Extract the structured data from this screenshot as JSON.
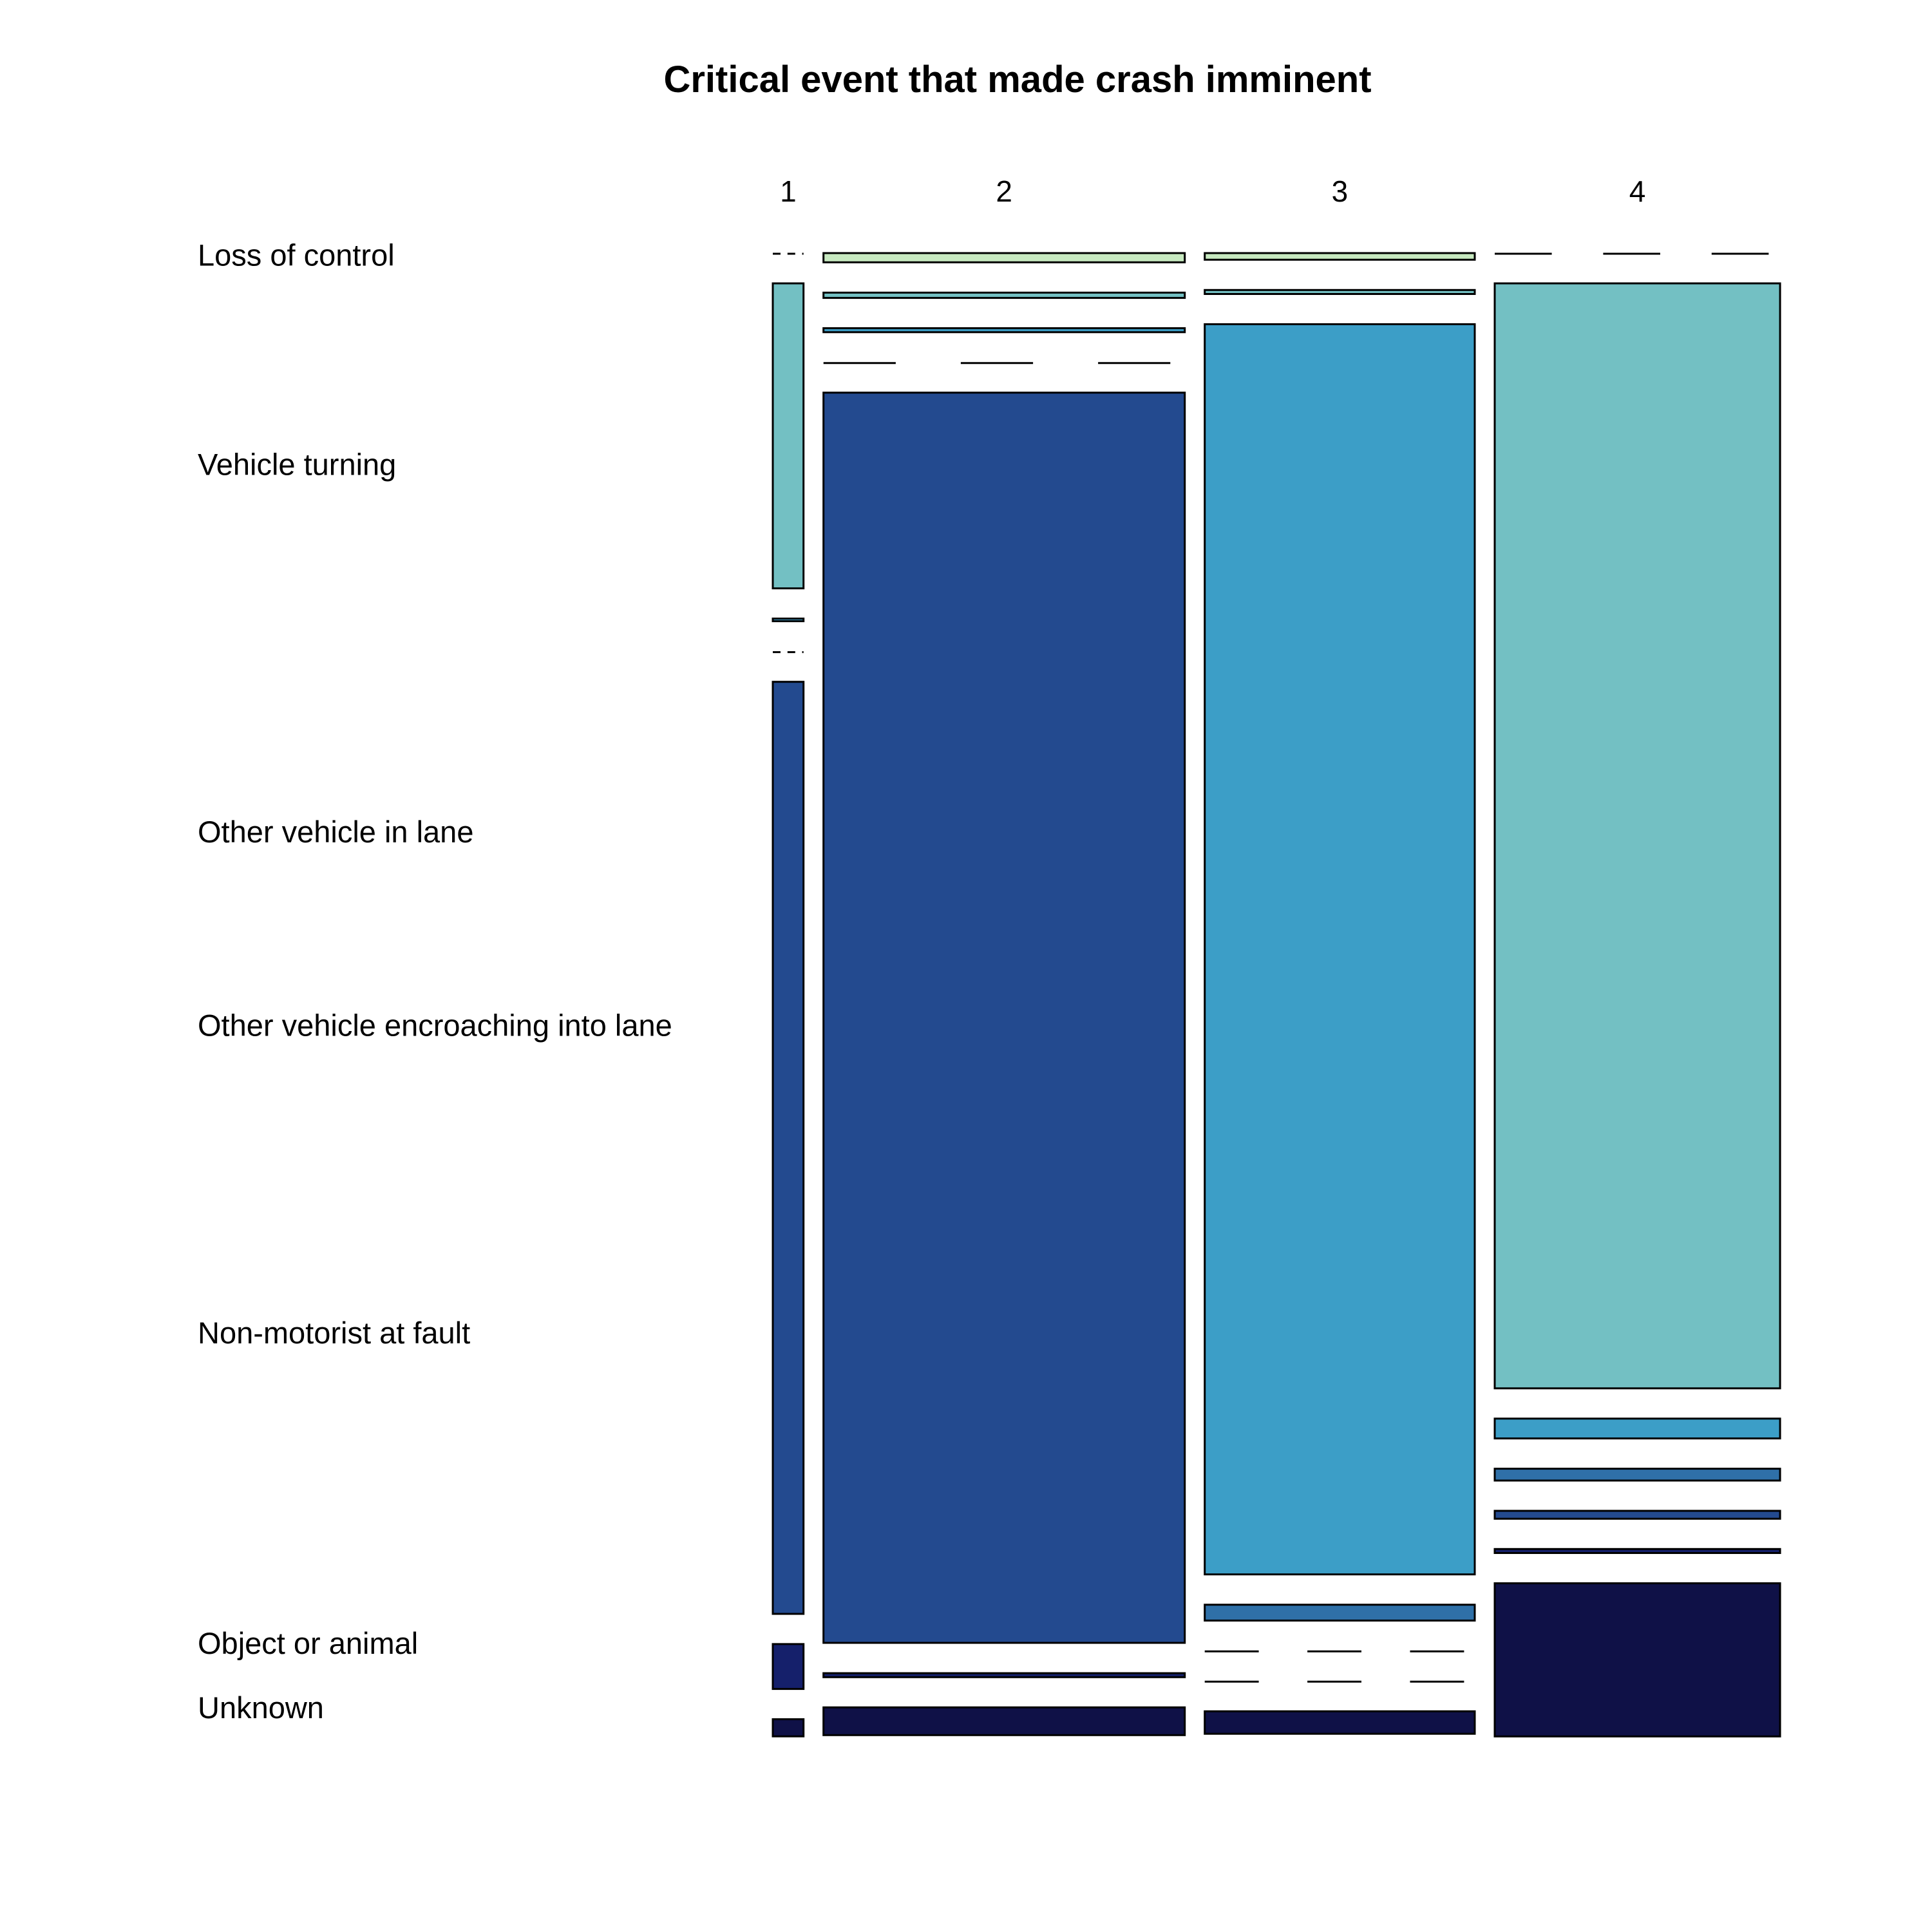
{
  "chart_data": {
    "type": "mosaic",
    "title": "Critical event that made crash imminent",
    "xlabel": "",
    "ylabel": "",
    "columns": [
      "1",
      "2",
      "3",
      "4"
    ],
    "rows": [
      "Loss of control",
      "Vehicle turning",
      "Other vehicle in lane",
      "Other vehicle encroaching into lane",
      "Non-motorist at fault",
      "Object or animal",
      "Unknown"
    ],
    "column_shares": [
      0.032,
      0.376,
      0.281,
      0.297
    ],
    "colors": [
      "#c7e9c0",
      "#73c0c3",
      "#3c9ec7",
      "#2f70a8",
      "#234a8f",
      "#15206b",
      "#0f1147"
    ],
    "cells": [
      [
        0.0,
        0.231,
        0.002,
        0.0,
        0.706,
        0.034,
        0.013
      ],
      [
        0.007,
        0.004,
        0.003,
        0.0,
        0.947,
        0.003,
        0.021
      ],
      [
        0.005,
        0.003,
        0.947,
        0.012,
        0.0,
        0.0,
        0.017
      ],
      [
        0.0,
        0.837,
        0.015,
        0.009,
        0.006,
        0.003,
        0.116
      ]
    ]
  }
}
